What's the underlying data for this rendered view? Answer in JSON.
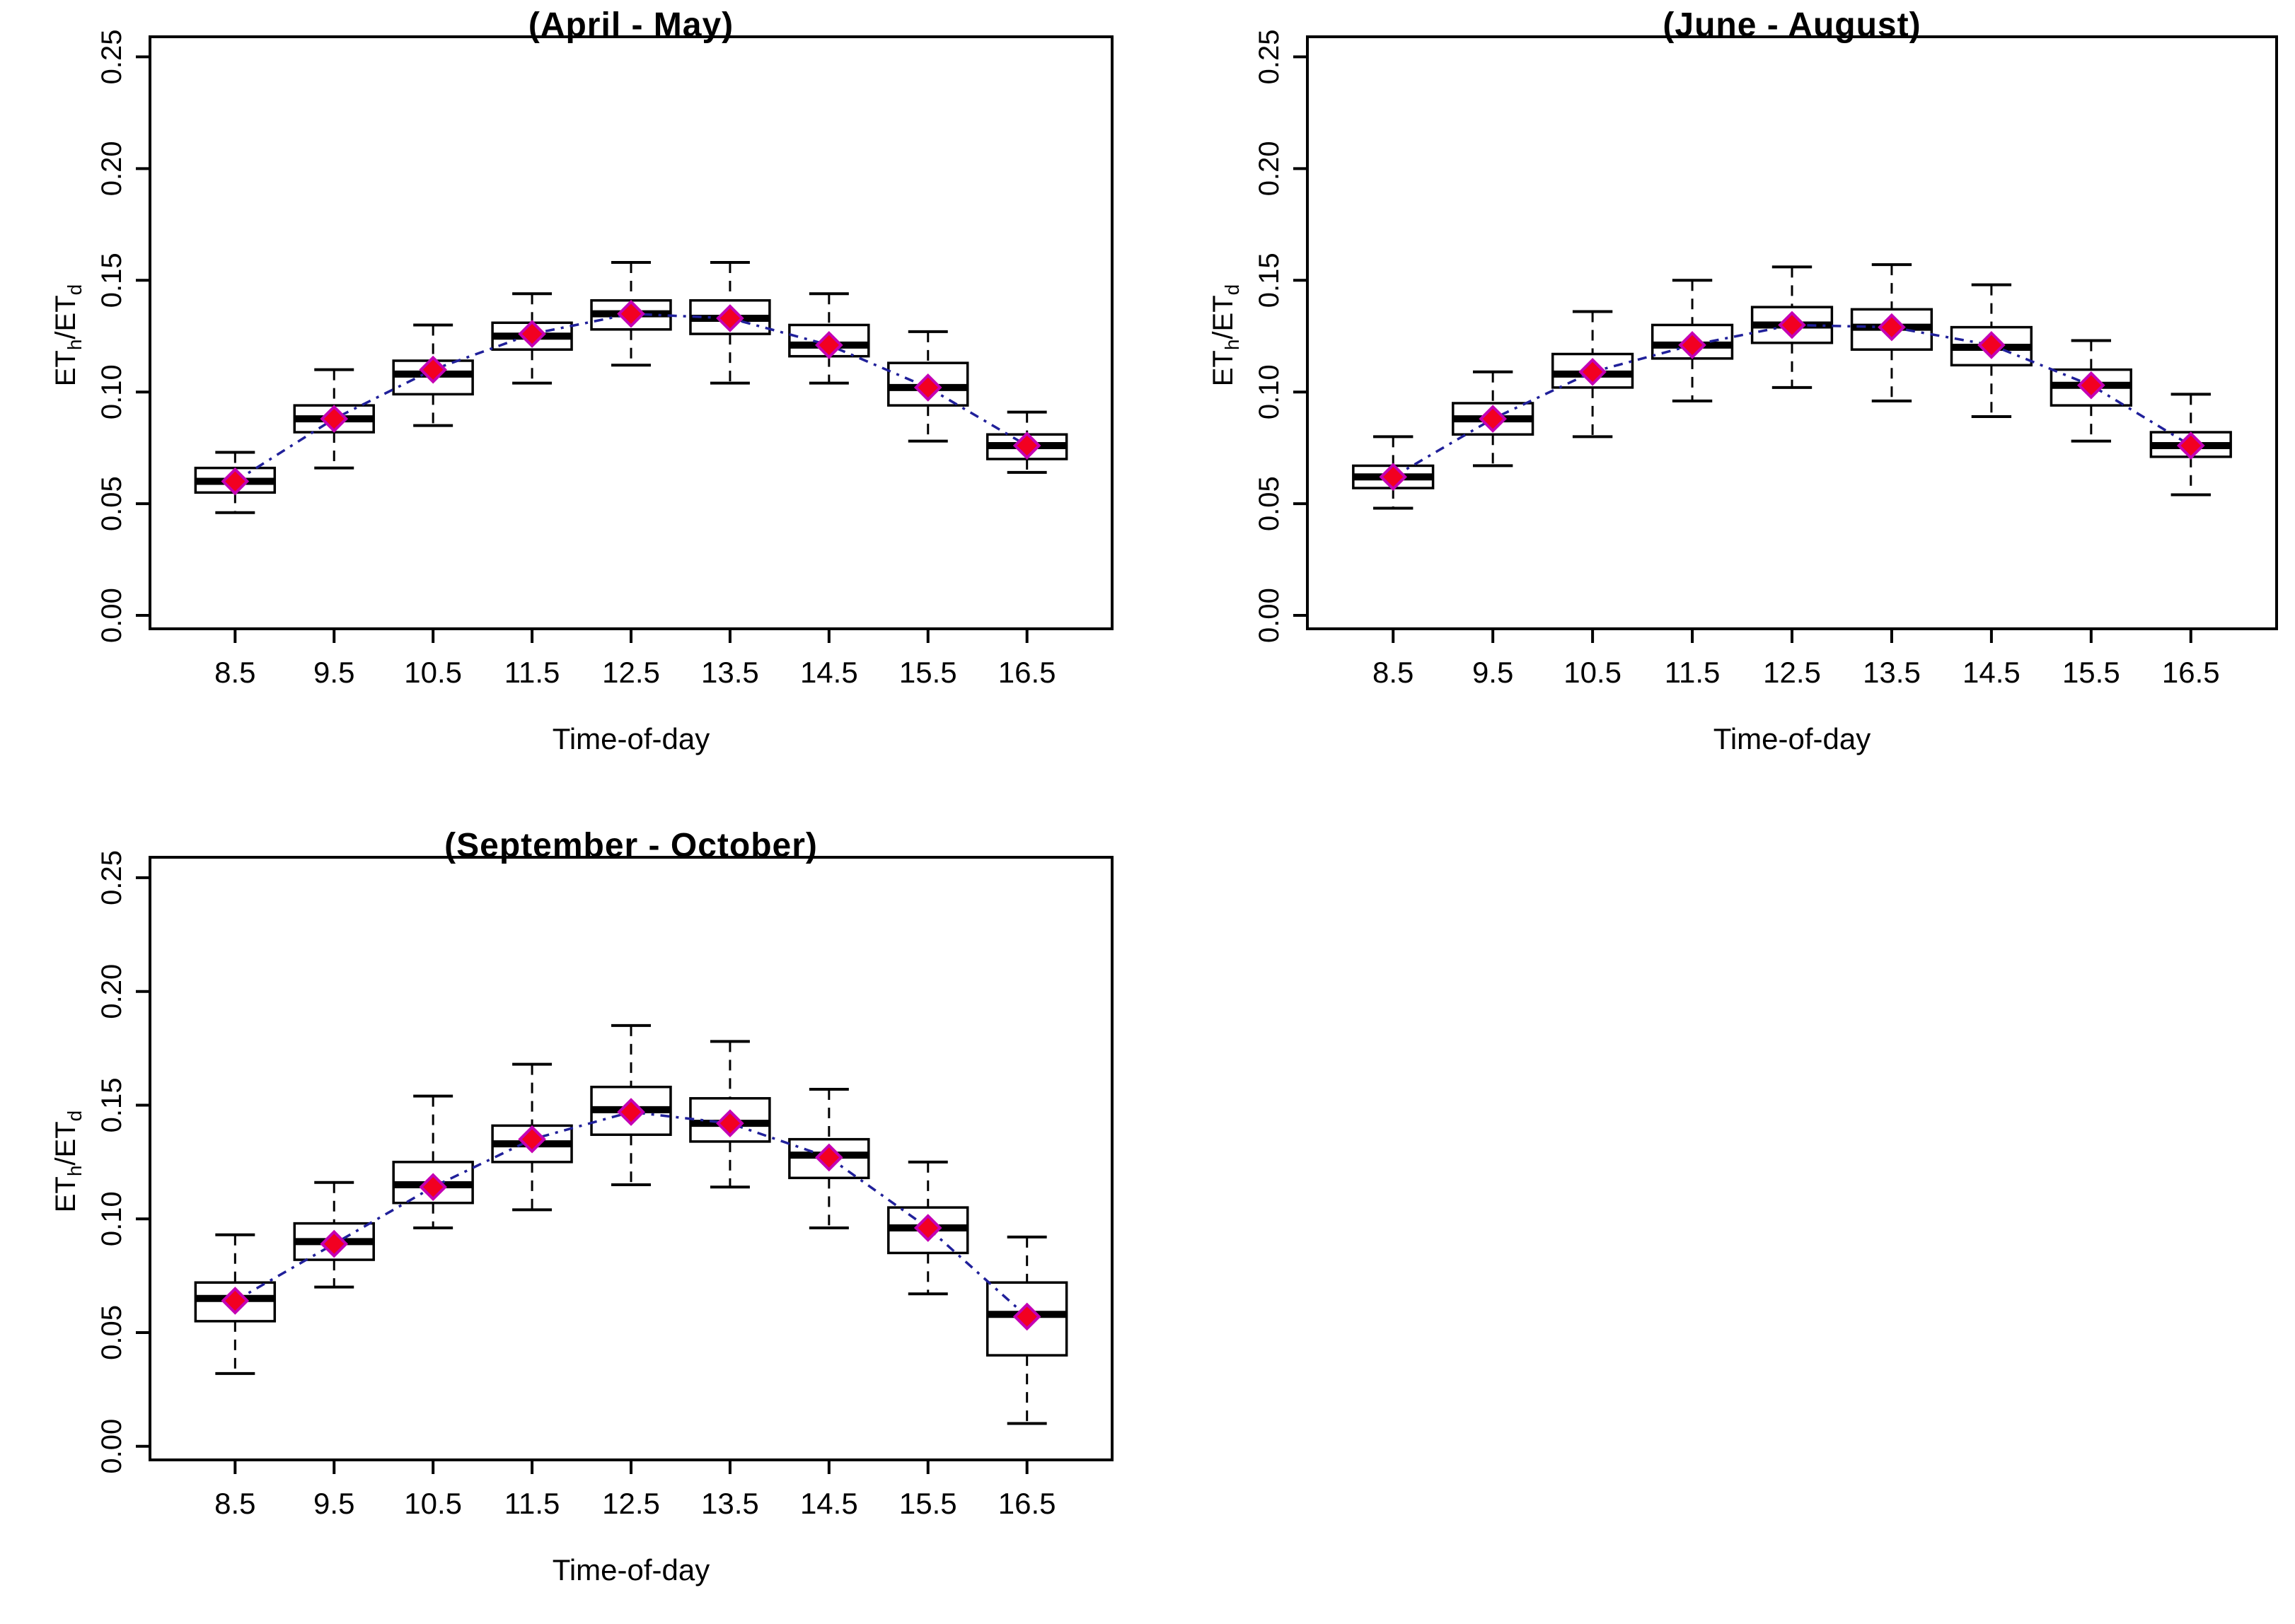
{
  "figure": {
    "background": "#ffffff",
    "xlabel": "Time-of-day",
    "ylabel_parts": {
      "main1": "ET",
      "sub1": "h",
      "main2": "/ET",
      "sub2": "d"
    }
  },
  "chart_data": [
    {
      "type": "boxplot",
      "title": "(April - May)",
      "xlabel": "Time-of-day",
      "ylabel": "ETh/ETd",
      "categories": [
        "8.5",
        "9.5",
        "10.5",
        "11.5",
        "12.5",
        "13.5",
        "14.5",
        "15.5",
        "16.5"
      ],
      "yticks": [
        "0.00",
        "0.05",
        "0.10",
        "0.15",
        "0.20",
        "0.25"
      ],
      "ylim": [
        -0.006,
        0.259
      ],
      "xlim": [
        0.14,
        9.86
      ],
      "grid": false,
      "legend": "none",
      "colors": {
        "box_border": "#000000",
        "median": "#000000",
        "whisker": "#000000",
        "mean_fill": "#f20021",
        "mean_stroke": "#c400b4",
        "mean_line": "#20209a",
        "frame": "#000000"
      },
      "boxes": [
        {
          "x": "8.5",
          "low": 0.046,
          "q1": 0.055,
          "median": 0.06,
          "q3": 0.066,
          "high": 0.073,
          "mean": 0.06
        },
        {
          "x": "9.5",
          "low": 0.066,
          "q1": 0.082,
          "median": 0.088,
          "q3": 0.094,
          "high": 0.11,
          "mean": 0.088
        },
        {
          "x": "10.5",
          "low": 0.085,
          "q1": 0.099,
          "median": 0.108,
          "q3": 0.114,
          "high": 0.13,
          "mean": 0.11
        },
        {
          "x": "11.5",
          "low": 0.104,
          "q1": 0.119,
          "median": 0.125,
          "q3": 0.131,
          "high": 0.144,
          "mean": 0.126
        },
        {
          "x": "12.5",
          "low": 0.112,
          "q1": 0.128,
          "median": 0.135,
          "q3": 0.141,
          "high": 0.158,
          "mean": 0.135
        },
        {
          "x": "13.5",
          "low": 0.104,
          "q1": 0.126,
          "median": 0.133,
          "q3": 0.141,
          "high": 0.158,
          "mean": 0.133
        },
        {
          "x": "14.5",
          "low": 0.104,
          "q1": 0.116,
          "median": 0.121,
          "q3": 0.13,
          "high": 0.144,
          "mean": 0.121
        },
        {
          "x": "15.5",
          "low": 0.078,
          "q1": 0.094,
          "median": 0.102,
          "q3": 0.113,
          "high": 0.127,
          "mean": 0.102
        },
        {
          "x": "16.5",
          "low": 0.064,
          "q1": 0.07,
          "median": 0.076,
          "q3": 0.081,
          "high": 0.091,
          "mean": 0.076
        }
      ]
    },
    {
      "type": "boxplot",
      "title": "(June - August)",
      "xlabel": "Time-of-day",
      "ylabel": "ETh/ETd",
      "categories": [
        "8.5",
        "9.5",
        "10.5",
        "11.5",
        "12.5",
        "13.5",
        "14.5",
        "15.5",
        "16.5"
      ],
      "yticks": [
        "0.00",
        "0.05",
        "0.10",
        "0.15",
        "0.20",
        "0.25"
      ],
      "ylim": [
        -0.006,
        0.259
      ],
      "xlim": [
        0.14,
        9.86
      ],
      "grid": false,
      "legend": "none",
      "colors": {
        "box_border": "#000000",
        "median": "#000000",
        "whisker": "#000000",
        "mean_fill": "#f20021",
        "mean_stroke": "#c400b4",
        "mean_line": "#20209a",
        "frame": "#000000"
      },
      "boxes": [
        {
          "x": "8.5",
          "low": 0.048,
          "q1": 0.057,
          "median": 0.062,
          "q3": 0.067,
          "high": 0.08,
          "mean": 0.062
        },
        {
          "x": "9.5",
          "low": 0.067,
          "q1": 0.081,
          "median": 0.088,
          "q3": 0.095,
          "high": 0.109,
          "mean": 0.088
        },
        {
          "x": "10.5",
          "low": 0.08,
          "q1": 0.102,
          "median": 0.108,
          "q3": 0.117,
          "high": 0.136,
          "mean": 0.109
        },
        {
          "x": "11.5",
          "low": 0.096,
          "q1": 0.115,
          "median": 0.121,
          "q3": 0.13,
          "high": 0.15,
          "mean": 0.121
        },
        {
          "x": "12.5",
          "low": 0.102,
          "q1": 0.122,
          "median": 0.13,
          "q3": 0.138,
          "high": 0.156,
          "mean": 0.13
        },
        {
          "x": "13.5",
          "low": 0.096,
          "q1": 0.119,
          "median": 0.129,
          "q3": 0.137,
          "high": 0.157,
          "mean": 0.129
        },
        {
          "x": "14.5",
          "low": 0.089,
          "q1": 0.112,
          "median": 0.12,
          "q3": 0.129,
          "high": 0.148,
          "mean": 0.121
        },
        {
          "x": "15.5",
          "low": 0.078,
          "q1": 0.094,
          "median": 0.103,
          "q3": 0.11,
          "high": 0.123,
          "mean": 0.103
        },
        {
          "x": "16.5",
          "low": 0.054,
          "q1": 0.071,
          "median": 0.076,
          "q3": 0.082,
          "high": 0.099,
          "mean": 0.076
        }
      ]
    },
    {
      "type": "boxplot",
      "title": "(September - October)",
      "xlabel": "Time-of-day",
      "ylabel": "ETh/ETd",
      "categories": [
        "8.5",
        "9.5",
        "10.5",
        "11.5",
        "12.5",
        "13.5",
        "14.5",
        "15.5",
        "16.5"
      ],
      "yticks": [
        "0.00",
        "0.05",
        "0.10",
        "0.15",
        "0.20",
        "0.25"
      ],
      "ylim": [
        -0.006,
        0.259
      ],
      "xlim": [
        0.14,
        9.86
      ],
      "grid": false,
      "legend": "none",
      "colors": {
        "box_border": "#000000",
        "median": "#000000",
        "whisker": "#000000",
        "mean_fill": "#f20021",
        "mean_stroke": "#c400b4",
        "mean_line": "#20209a",
        "frame": "#000000"
      },
      "boxes": [
        {
          "x": "8.5",
          "low": 0.032,
          "q1": 0.055,
          "median": 0.065,
          "q3": 0.072,
          "high": 0.093,
          "mean": 0.064
        },
        {
          "x": "9.5",
          "low": 0.07,
          "q1": 0.082,
          "median": 0.09,
          "q3": 0.098,
          "high": 0.116,
          "mean": 0.089
        },
        {
          "x": "10.5",
          "low": 0.096,
          "q1": 0.107,
          "median": 0.115,
          "q3": 0.125,
          "high": 0.154,
          "mean": 0.114
        },
        {
          "x": "11.5",
          "low": 0.104,
          "q1": 0.125,
          "median": 0.133,
          "q3": 0.141,
          "high": 0.168,
          "mean": 0.135
        },
        {
          "x": "12.5",
          "low": 0.115,
          "q1": 0.137,
          "median": 0.148,
          "q3": 0.158,
          "high": 0.185,
          "mean": 0.147
        },
        {
          "x": "13.5",
          "low": 0.114,
          "q1": 0.134,
          "median": 0.142,
          "q3": 0.153,
          "high": 0.178,
          "mean": 0.142
        },
        {
          "x": "14.5",
          "low": 0.096,
          "q1": 0.118,
          "median": 0.128,
          "q3": 0.135,
          "high": 0.157,
          "mean": 0.127
        },
        {
          "x": "15.5",
          "low": 0.067,
          "q1": 0.085,
          "median": 0.096,
          "q3": 0.105,
          "high": 0.125,
          "mean": 0.096
        },
        {
          "x": "16.5",
          "low": 0.01,
          "q1": 0.04,
          "median": 0.058,
          "q3": 0.072,
          "high": 0.092,
          "mean": 0.057
        }
      ]
    }
  ]
}
